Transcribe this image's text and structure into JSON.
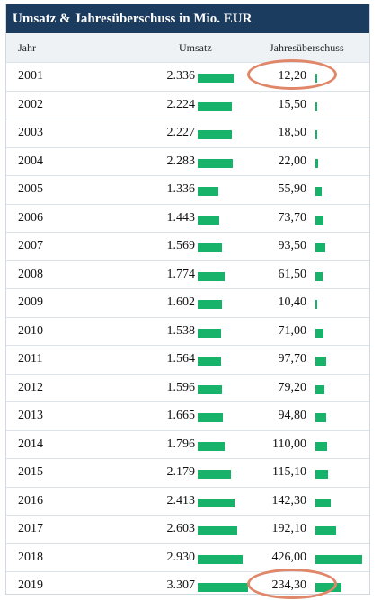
{
  "title": "Umsatz & Jahresüberschuss in Mio. EUR",
  "columns": {
    "year": "Jahr",
    "umsatz": "Umsatz",
    "jahres": "Jahresüberschuss"
  },
  "colors": {
    "header_bg": "#1b3c5e",
    "bar": "#18b36b",
    "highlight": "#e0876a"
  },
  "chart_data": {
    "type": "table",
    "title": "Umsatz & Jahresüberschuss in Mio. EUR",
    "columns": [
      "Jahr",
      "Umsatz",
      "Jahresüberschuss"
    ],
    "rows": [
      {
        "year": "2001",
        "umsatz": "2.336",
        "jahres": "12,20",
        "umsatz_value": 2336,
        "jahres_value": 12.2,
        "highlighted": true
      },
      {
        "year": "2002",
        "umsatz": "2.224",
        "jahres": "15,50",
        "umsatz_value": 2224,
        "jahres_value": 15.5
      },
      {
        "year": "2003",
        "umsatz": "2.227",
        "jahres": "18,50",
        "umsatz_value": 2227,
        "jahres_value": 18.5
      },
      {
        "year": "2004",
        "umsatz": "2.283",
        "jahres": "22,00",
        "umsatz_value": 2283,
        "jahres_value": 22.0
      },
      {
        "year": "2005",
        "umsatz": "1.336",
        "jahres": "55,90",
        "umsatz_value": 1336,
        "jahres_value": 55.9
      },
      {
        "year": "2006",
        "umsatz": "1.443",
        "jahres": "73,70",
        "umsatz_value": 1443,
        "jahres_value": 73.7
      },
      {
        "year": "2007",
        "umsatz": "1.569",
        "jahres": "93,50",
        "umsatz_value": 1569,
        "jahres_value": 93.5
      },
      {
        "year": "2008",
        "umsatz": "1.774",
        "jahres": "61,50",
        "umsatz_value": 1774,
        "jahres_value": 61.5
      },
      {
        "year": "2009",
        "umsatz": "1.602",
        "jahres": "10,40",
        "umsatz_value": 1602,
        "jahres_value": 10.4
      },
      {
        "year": "2010",
        "umsatz": "1.538",
        "jahres": "71,00",
        "umsatz_value": 1538,
        "jahres_value": 71.0
      },
      {
        "year": "2011",
        "umsatz": "1.564",
        "jahres": "97,70",
        "umsatz_value": 1564,
        "jahres_value": 97.7
      },
      {
        "year": "2012",
        "umsatz": "1.596",
        "jahres": "79,20",
        "umsatz_value": 1596,
        "jahres_value": 79.2
      },
      {
        "year": "2013",
        "umsatz": "1.665",
        "jahres": "94,80",
        "umsatz_value": 1665,
        "jahres_value": 94.8
      },
      {
        "year": "2014",
        "umsatz": "1.796",
        "jahres": "110,00",
        "umsatz_value": 1796,
        "jahres_value": 110.0
      },
      {
        "year": "2015",
        "umsatz": "2.179",
        "jahres": "115,10",
        "umsatz_value": 2179,
        "jahres_value": 115.1
      },
      {
        "year": "2016",
        "umsatz": "2.413",
        "jahres": "142,30",
        "umsatz_value": 2413,
        "jahres_value": 142.3
      },
      {
        "year": "2017",
        "umsatz": "2.603",
        "jahres": "192,10",
        "umsatz_value": 2603,
        "jahres_value": 192.1
      },
      {
        "year": "2018",
        "umsatz": "2.930",
        "jahres": "426,00",
        "umsatz_value": 2930,
        "jahres_value": 426.0
      },
      {
        "year": "2019",
        "umsatz": "3.307",
        "jahres": "234,30",
        "umsatz_value": 3307,
        "jahres_value": 234.3,
        "highlighted": true
      }
    ]
  }
}
